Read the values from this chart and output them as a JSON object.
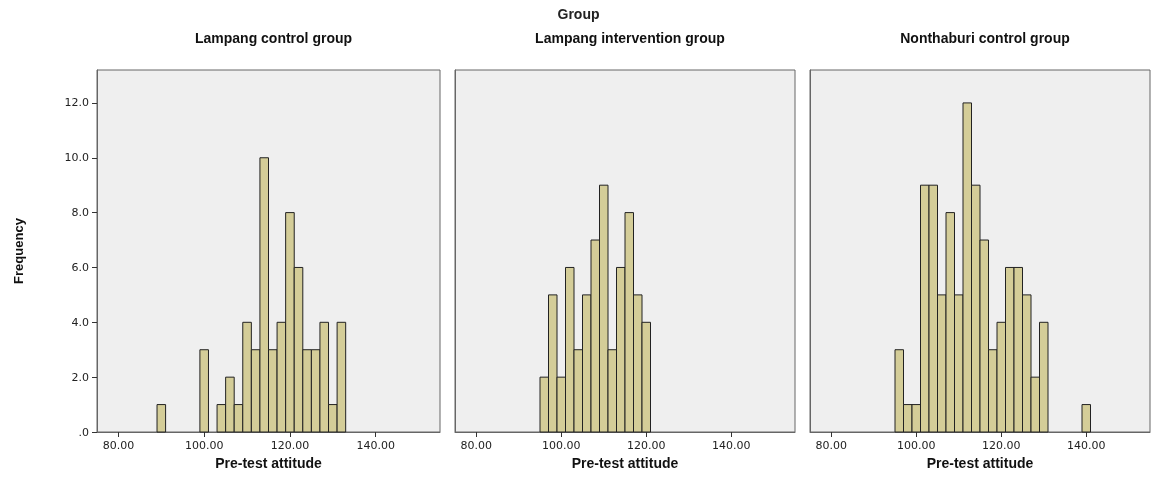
{
  "chart_data": [
    {
      "type": "histogram",
      "title": "Lampang control group",
      "xlabel": "Pre-test attitude",
      "ylabel": "Frequency",
      "annotations": [
        "Group"
      ],
      "color": "#d4cd98",
      "bins": [
        89,
        91,
        93,
        95,
        97,
        99,
        101,
        103,
        105,
        107,
        109,
        111,
        113,
        115,
        117,
        119,
        121,
        123,
        125,
        127,
        129,
        131,
        133
      ],
      "values": [
        1,
        0,
        0,
        0,
        0,
        3,
        0,
        1,
        2,
        1,
        4,
        3,
        10,
        3,
        4,
        8,
        6,
        3,
        3,
        4,
        1,
        4
      ],
      "xlim": [
        75,
        155
      ],
      "xticks": [
        {
          "value": 80,
          "label": "80.00"
        },
        {
          "value": 100,
          "label": "100.00"
        },
        {
          "value": 120,
          "label": "120.00"
        },
        {
          "value": 140,
          "label": "140.00"
        }
      ],
      "ylim": [
        0,
        13.2
      ],
      "yticks": [
        {
          "value": 0,
          "label": ".0"
        },
        {
          "value": 2,
          "label": "2.0"
        },
        {
          "value": 4,
          "label": "4.0"
        },
        {
          "value": 6,
          "label": "6.0"
        },
        {
          "value": 8,
          "label": "8.0"
        },
        {
          "value": 10,
          "label": "10.0"
        },
        {
          "value": 12,
          "label": "12.0"
        }
      ],
      "grid": false
    },
    {
      "type": "histogram",
      "title": "Lampang intervention group",
      "xlabel": "Pre-test attitude",
      "color": "#d4cd98",
      "tick_labels": "x",
      "bins": [
        95,
        97,
        99,
        101,
        103,
        105,
        107,
        109,
        111,
        113,
        115,
        117,
        119,
        121
      ],
      "values": [
        2,
        5,
        2,
        6,
        3,
        5,
        7,
        9,
        3,
        6,
        8,
        5,
        4
      ],
      "xlim": [
        75,
        155
      ],
      "xticks": [
        {
          "value": 80,
          "label": "80.00"
        },
        {
          "value": 100,
          "label": "100.00"
        },
        {
          "value": 120,
          "label": "120.00"
        },
        {
          "value": 140,
          "label": "140.00"
        }
      ],
      "ylim": [
        0,
        13.2
      ],
      "grid": false
    },
    {
      "type": "histogram",
      "title": "Nonthaburi control group",
      "xlabel": "Pre-test attitude",
      "color": "#d4cd98",
      "tick_labels": "x",
      "bins": [
        95,
        97,
        99,
        101,
        103,
        105,
        107,
        109,
        111,
        113,
        115,
        117,
        119,
        121,
        123,
        125,
        127,
        129,
        131,
        133,
        135,
        137,
        139,
        141
      ],
      "values": [
        3,
        1,
        1,
        9,
        9,
        5,
        8,
        5,
        12,
        9,
        7,
        3,
        4,
        6,
        6,
        5,
        2,
        4,
        0,
        0,
        0,
        0,
        1
      ],
      "xlim": [
        75,
        155
      ],
      "xticks": [
        {
          "value": 80,
          "label": "80.00"
        },
        {
          "value": 100,
          "label": "100.00"
        },
        {
          "value": 120,
          "label": "120.00"
        },
        {
          "value": 140,
          "label": "140.00"
        }
      ],
      "ylim": [
        0,
        13.2
      ],
      "grid": false
    }
  ]
}
